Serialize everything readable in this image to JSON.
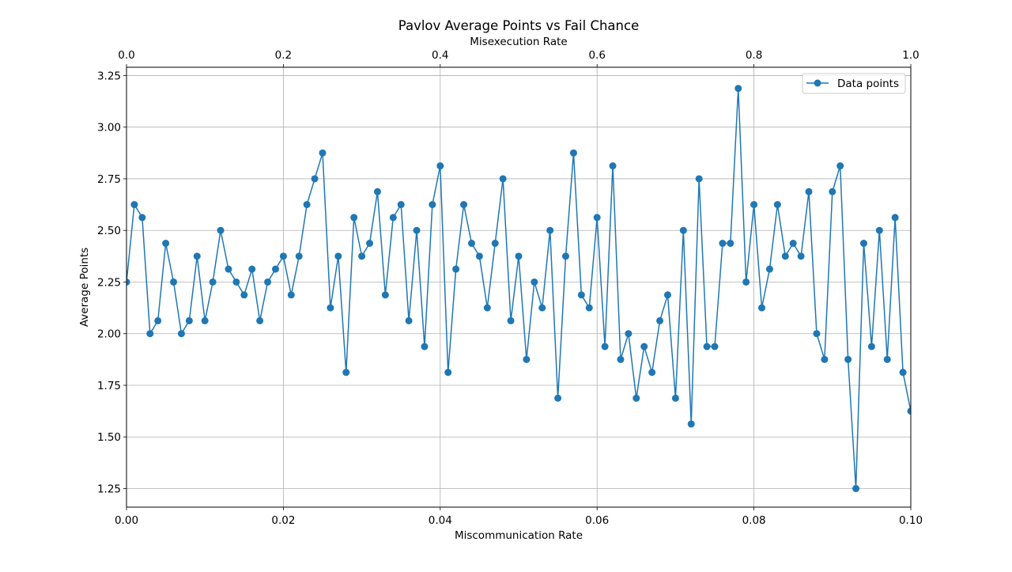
{
  "chart_data": {
    "type": "line",
    "title": "Pavlov Average Points vs Fail Chance",
    "xlabel": "Miscommunication Rate",
    "ylabel": "Average Points",
    "x2label": "Misexecution Rate",
    "xlim": [
      0.0,
      0.1
    ],
    "ylim": [
      1.16,
      3.29
    ],
    "x2lim": [
      0.0,
      1.0
    ],
    "x_ticks": [
      "0.00",
      "0.02",
      "0.04",
      "0.06",
      "0.08",
      "0.10"
    ],
    "x2_ticks": [
      "0.0",
      "0.2",
      "0.4",
      "0.6",
      "0.8",
      "1.0"
    ],
    "y_ticks": [
      "1.25",
      "1.50",
      "1.75",
      "2.00",
      "2.25",
      "2.50",
      "2.75",
      "3.00",
      "3.25"
    ],
    "grid": true,
    "legend_position": "top-right",
    "series": [
      {
        "name": "Data points",
        "color": "#1f77b4",
        "marker": "circle",
        "x": [
          0.0,
          0.001,
          0.002,
          0.003,
          0.004,
          0.005,
          0.006,
          0.007,
          0.008,
          0.009,
          0.01,
          0.011,
          0.012,
          0.013,
          0.014,
          0.015,
          0.016,
          0.017,
          0.018,
          0.019,
          0.02,
          0.021,
          0.022,
          0.023,
          0.024,
          0.025,
          0.026,
          0.027,
          0.028,
          0.029,
          0.03,
          0.031,
          0.032,
          0.033,
          0.034,
          0.035,
          0.036,
          0.037,
          0.038,
          0.039,
          0.04,
          0.041,
          0.042,
          0.043,
          0.044,
          0.045,
          0.046,
          0.047,
          0.048,
          0.049,
          0.05,
          0.051,
          0.052,
          0.053,
          0.054,
          0.055,
          0.056,
          0.057,
          0.058,
          0.059,
          0.06,
          0.061,
          0.062,
          0.063,
          0.064,
          0.065,
          0.066,
          0.067,
          0.068,
          0.069,
          0.07,
          0.071,
          0.072,
          0.073,
          0.074,
          0.075,
          0.076,
          0.077,
          0.078,
          0.079,
          0.08,
          0.081,
          0.082,
          0.083,
          0.084,
          0.085,
          0.086,
          0.087,
          0.088,
          0.089,
          0.09,
          0.091,
          0.092,
          0.093,
          0.094,
          0.095,
          0.096,
          0.097,
          0.098,
          0.099,
          0.1
        ],
        "y": [
          2.25,
          2.625,
          2.5625,
          2.0,
          2.0625,
          2.4375,
          2.25,
          2.0,
          2.0625,
          2.375,
          2.0625,
          2.25,
          2.5,
          2.3125,
          2.25,
          2.1875,
          2.3125,
          2.0625,
          2.25,
          2.3125,
          2.375,
          2.1875,
          2.375,
          2.625,
          2.75,
          2.875,
          2.125,
          2.375,
          1.8125,
          2.5625,
          2.375,
          2.4375,
          2.6875,
          2.1875,
          2.5625,
          2.625,
          2.0625,
          2.5,
          1.9375,
          2.625,
          2.8125,
          1.8125,
          2.3125,
          2.625,
          2.4375,
          2.375,
          2.125,
          2.4375,
          2.75,
          2.0625,
          2.375,
          1.875,
          2.25,
          2.125,
          2.5,
          1.6875,
          2.375,
          2.875,
          2.1875,
          2.125,
          2.5625,
          1.9375,
          2.8125,
          1.875,
          2.0,
          1.6875,
          1.9375,
          1.8125,
          2.0625,
          2.1875,
          1.6875,
          2.5,
          1.5625,
          2.75,
          1.9375,
          1.9375,
          2.4375,
          2.4375,
          3.1875,
          2.25,
          2.625,
          2.125,
          2.3125,
          2.625,
          2.375,
          2.4375,
          2.375,
          2.6875,
          2.0,
          1.875,
          2.6875,
          2.8125,
          1.875,
          1.25,
          2.4375,
          1.9375,
          2.5,
          1.875,
          2.5625,
          1.8125,
          1.625
        ]
      }
    ]
  }
}
